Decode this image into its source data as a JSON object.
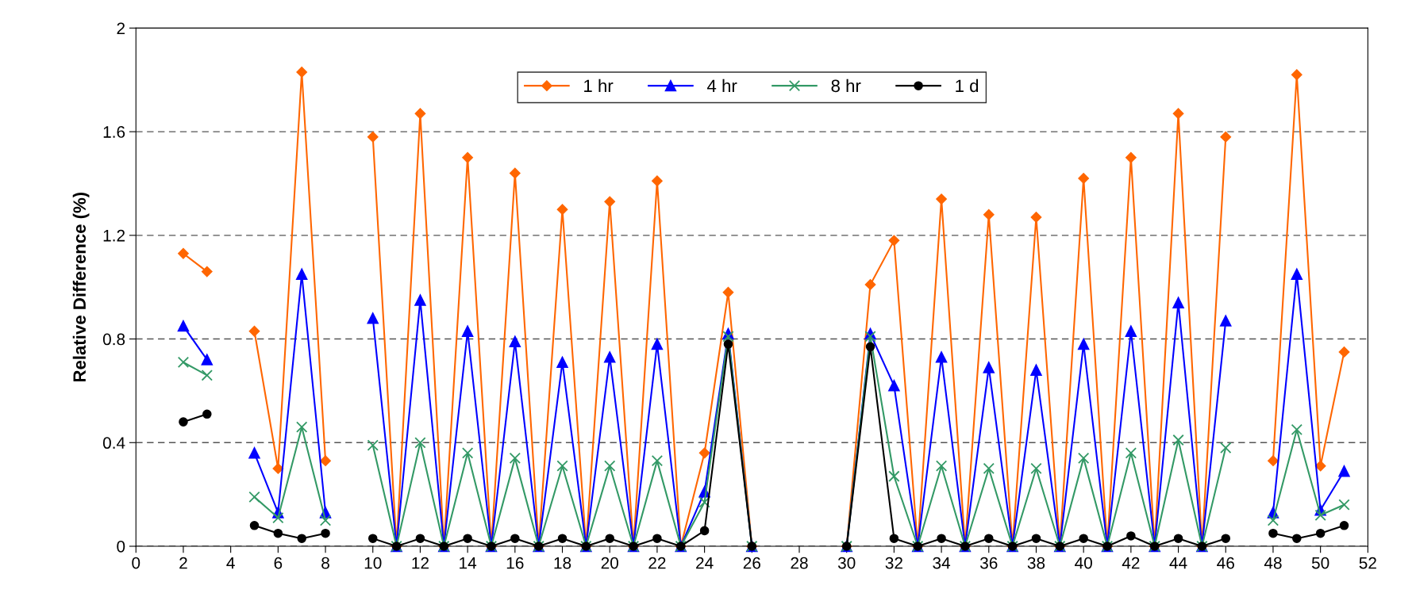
{
  "chart_data": {
    "type": "line",
    "ylabel": "Relative Difference (%)",
    "x": [
      2,
      3,
      4,
      5,
      6,
      7,
      8,
      9,
      10,
      11,
      12,
      13,
      14,
      15,
      16,
      17,
      18,
      19,
      20,
      21,
      22,
      23,
      24,
      25,
      26,
      27,
      28,
      29,
      30,
      31,
      32,
      33,
      34,
      35,
      36,
      37,
      38,
      39,
      40,
      41,
      42,
      43,
      44,
      45,
      46,
      47,
      48,
      49,
      50,
      51
    ],
    "series": [
      {
        "name": "1 hr",
        "color": "#ff6600",
        "marker": "diamond",
        "values": [
          1.13,
          1.06,
          null,
          0.83,
          0.3,
          1.83,
          0.33,
          null,
          1.58,
          0,
          1.67,
          0,
          1.5,
          0,
          1.44,
          0,
          1.3,
          0,
          1.33,
          0,
          1.41,
          0,
          0.36,
          0.98,
          0,
          null,
          null,
          null,
          0,
          1.01,
          1.18,
          0,
          1.34,
          0,
          1.28,
          0,
          1.27,
          0,
          1.42,
          0,
          1.5,
          0,
          1.67,
          0,
          1.58,
          null,
          0.33,
          1.82,
          0.31,
          0.75
        ]
      },
      {
        "name": "4 hr",
        "color": "#0000ff",
        "marker": "triangle",
        "values": [
          0.85,
          0.72,
          null,
          0.36,
          0.13,
          1.05,
          0.13,
          null,
          0.88,
          0,
          0.95,
          0,
          0.83,
          0,
          0.79,
          0,
          0.71,
          0,
          0.73,
          0,
          0.78,
          0,
          0.21,
          0.82,
          0,
          null,
          null,
          null,
          0,
          0.82,
          0.62,
          0,
          0.73,
          0,
          0.69,
          0,
          0.68,
          0,
          0.78,
          0,
          0.83,
          0,
          0.94,
          0,
          0.87,
          null,
          0.13,
          1.05,
          0.14,
          0.29
        ]
      },
      {
        "name": "8 hr",
        "color": "#339966",
        "marker": "cross",
        "values": [
          0.71,
          0.66,
          null,
          0.19,
          0.11,
          0.46,
          0.1,
          null,
          0.39,
          0,
          0.4,
          0,
          0.36,
          0,
          0.34,
          0,
          0.31,
          0,
          0.31,
          0,
          0.33,
          0,
          0.17,
          0.81,
          0,
          null,
          null,
          null,
          0,
          0.81,
          0.27,
          0,
          0.31,
          0,
          0.3,
          0,
          0.3,
          0,
          0.34,
          0,
          0.36,
          0,
          0.41,
          0,
          0.38,
          null,
          0.1,
          0.45,
          0.12,
          0.16
        ]
      },
      {
        "name": "1 d",
        "color": "#000000",
        "marker": "circle",
        "values": [
          0.48,
          0.51,
          null,
          0.08,
          0.05,
          0.03,
          0.05,
          null,
          0.03,
          0,
          0.03,
          0,
          0.03,
          0,
          0.03,
          0,
          0.03,
          0,
          0.03,
          0,
          0.03,
          0,
          0.06,
          0.78,
          0,
          null,
          null,
          null,
          0,
          0.77,
          0.03,
          0,
          0.03,
          0,
          0.03,
          0,
          0.03,
          0,
          0.03,
          0,
          0.04,
          0,
          0.03,
          0,
          0.03,
          null,
          0.05,
          0.03,
          0.05,
          0.08
        ]
      }
    ],
    "xlim": [
      0,
      52
    ],
    "xticks": [
      0,
      2,
      4,
      6,
      8,
      10,
      12,
      14,
      16,
      18,
      20,
      22,
      24,
      26,
      28,
      30,
      32,
      34,
      36,
      38,
      40,
      42,
      44,
      46,
      48,
      50,
      52
    ],
    "ylim": [
      0,
      2
    ],
    "yticks": [
      0,
      0.4,
      0.8,
      1.2,
      1.6,
      2
    ],
    "grid": "y",
    "legend": "top",
    "line_style": "solid"
  }
}
